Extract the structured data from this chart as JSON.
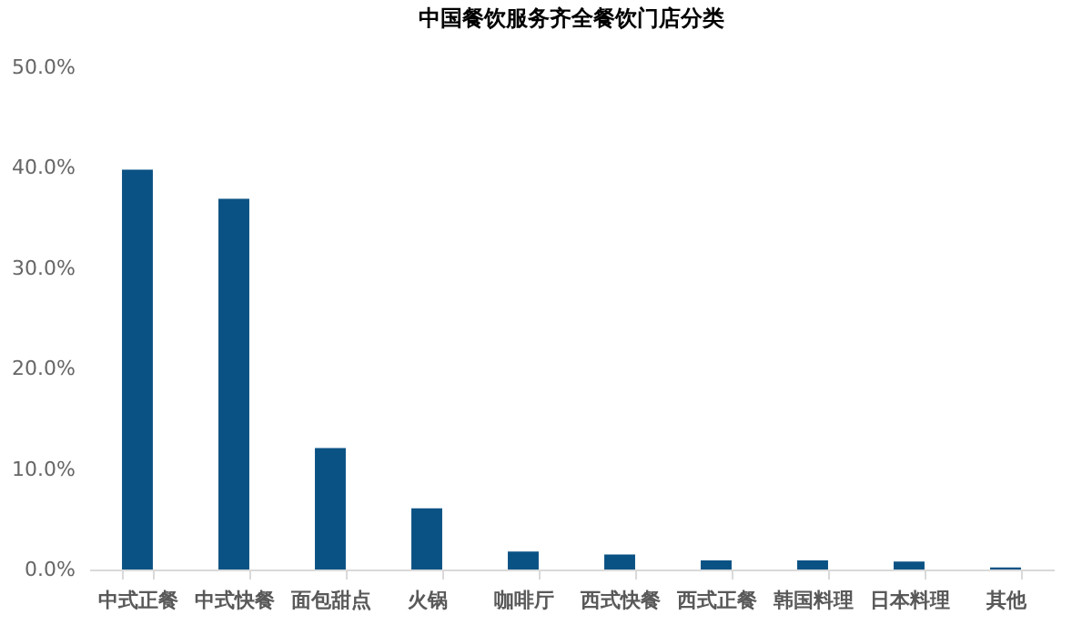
{
  "chart_data": {
    "type": "bar",
    "title": "中国餐饮服务齐全餐饮门店分类",
    "categories": [
      "中式正餐",
      "中式快餐",
      "面包甜点",
      "火锅",
      "咖啡厅",
      "西式快餐",
      "西式正餐",
      "韩国料理",
      "日本料理",
      "其他"
    ],
    "values": [
      39.8,
      36.9,
      12.1,
      6.1,
      1.8,
      1.5,
      0.9,
      0.9,
      0.8,
      0.2
    ],
    "color": "#0b5284",
    "ylim": [
      0,
      50
    ],
    "yticks": [
      {
        "value": 0,
        "label": "0.0%"
      },
      {
        "value": 10,
        "label": "10.0%"
      },
      {
        "value": 20,
        "label": "20.0%"
      },
      {
        "value": 30,
        "label": "30.0%"
      },
      {
        "value": 40,
        "label": "40.0%"
      },
      {
        "value": 50,
        "label": "50.0%"
      }
    ],
    "grid": false
  }
}
